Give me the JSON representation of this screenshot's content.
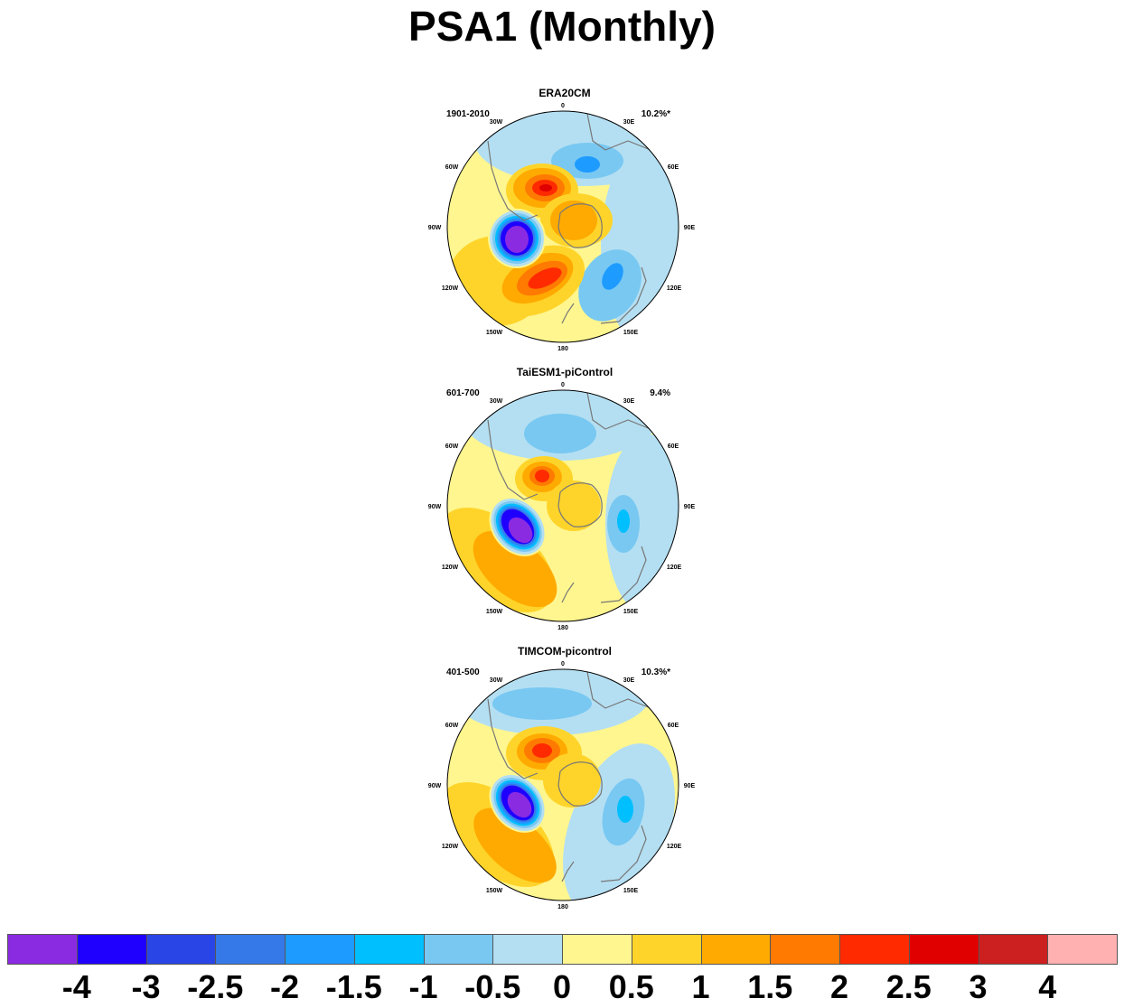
{
  "title": "PSA1 (Monthly)",
  "panels": [
    {
      "name": "ERA20CM",
      "period": "1901-2010",
      "variance": "10.2%*"
    },
    {
      "name": "TaiESM1-piControl",
      "period": "601-700",
      "variance": "9.4%"
    },
    {
      "name": "TIMCOM-picontrol",
      "period": "401-500",
      "variance": "10.3%*"
    }
  ],
  "lon_labels": [
    "0",
    "30E",
    "60E",
    "90E",
    "120E",
    "150E",
    "180",
    "150W",
    "120W",
    "90W",
    "60W",
    "30W"
  ],
  "colorbar": {
    "colors": [
      "#8a2be2",
      "#1f00ff",
      "#2a45e6",
      "#3579e8",
      "#1e9bff",
      "#00bfff",
      "#78c8f2",
      "#b4dff2",
      "#fff68f",
      "#ffd42a",
      "#ffaa00",
      "#ff7a00",
      "#ff2a00",
      "#e00000",
      "#cc1f1f",
      "#ffb0b0"
    ],
    "labels": [
      "-4",
      "-3",
      "-2.5",
      "-2",
      "-1.5",
      "-1",
      "-0.5",
      "0",
      "0.5",
      "1",
      "1.5",
      "2",
      "2.5",
      "3",
      "4"
    ]
  }
}
